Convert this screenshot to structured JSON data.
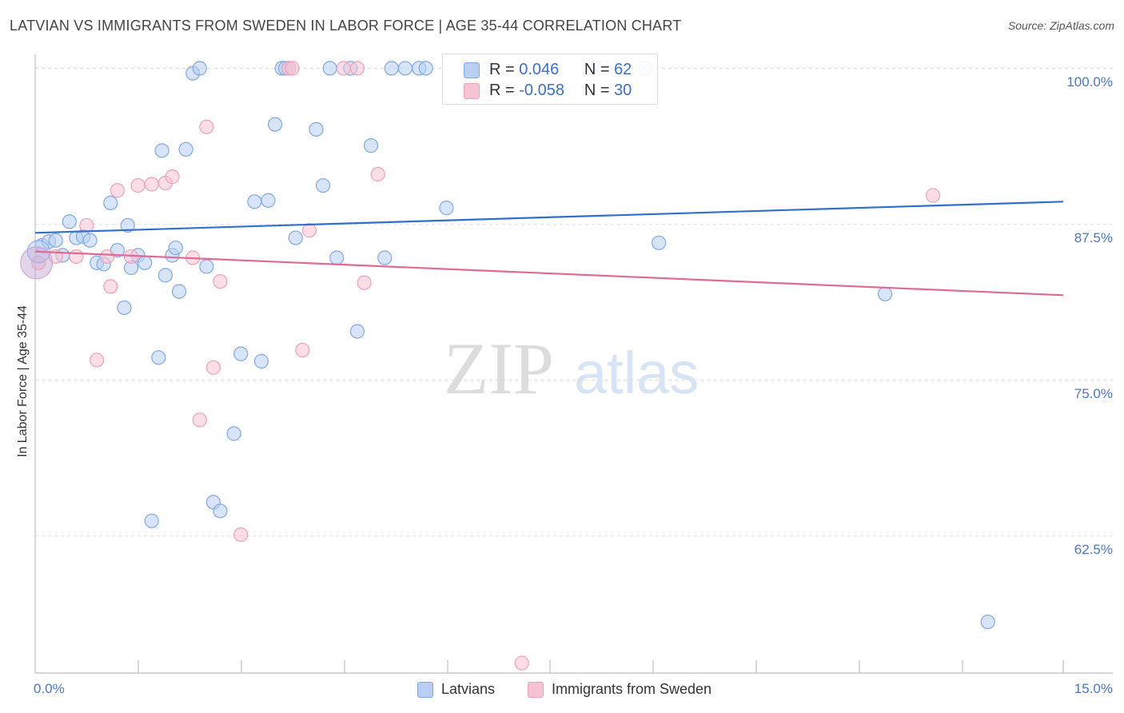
{
  "header": {
    "title": "LATVIAN VS IMMIGRANTS FROM SWEDEN IN LABOR FORCE | AGE 35-44 CORRELATION CHART",
    "source": "Source: ZipAtlas.com"
  },
  "watermark": {
    "zip": "ZIP",
    "atlas": "atlas"
  },
  "legend": {
    "rows": [
      {
        "r_label": "R = ",
        "r_value": "0.046",
        "n_label": "N = ",
        "n_value": "62"
      },
      {
        "r_label": "R = ",
        "r_value": "-0.058",
        "n_label": "N = ",
        "n_value": "30"
      }
    ]
  },
  "chart_data": {
    "type": "scatter",
    "title": "LATVIAN VS IMMIGRANTS FROM SWEDEN IN LABOR FORCE | AGE 35-44 CORRELATION CHART",
    "xlabel": "",
    "ylabel": "In Labor Force | Age 35-44",
    "xlim": [
      0,
      15
    ],
    "ylim": [
      51.5,
      101.5
    ],
    "x_tick_labels": [
      "0.0%",
      "15.0%"
    ],
    "y_ticks": [
      62.5,
      75.0,
      87.5,
      100.0
    ],
    "y_tick_labels": [
      "62.5%",
      "75.0%",
      "87.5%",
      "100.0%"
    ],
    "grid": true,
    "legend_position": "bottom-center",
    "series": [
      {
        "name": "Latvians",
        "color": "#7fa8e8",
        "fill": "#b8cff3",
        "line_color": "#2f6fce",
        "trend": {
          "x0": 0.0,
          "y0": 86.8,
          "x1": 15.0,
          "y1": 89.3
        },
        "points": [
          [
            0.1,
            85.8
          ],
          [
            0.2,
            86.1
          ],
          [
            0.3,
            86.2
          ],
          [
            0.4,
            85.0
          ],
          [
            0.5,
            87.7
          ],
          [
            0.6,
            86.4
          ],
          [
            0.7,
            86.5
          ],
          [
            0.8,
            86.2
          ],
          [
            0.9,
            84.4
          ],
          [
            1.0,
            84.3
          ],
          [
            1.1,
            89.2
          ],
          [
            1.2,
            85.4
          ],
          [
            1.3,
            80.8
          ],
          [
            1.35,
            87.4
          ],
          [
            1.4,
            84.0
          ],
          [
            1.5,
            85.0
          ],
          [
            1.6,
            84.4
          ],
          [
            1.7,
            63.7
          ],
          [
            1.8,
            76.8
          ],
          [
            1.85,
            93.4
          ],
          [
            1.9,
            83.4
          ],
          [
            2.0,
            85.0
          ],
          [
            2.05,
            85.6
          ],
          [
            2.1,
            82.1
          ],
          [
            2.2,
            93.5
          ],
          [
            2.3,
            99.6
          ],
          [
            2.4,
            100.0
          ],
          [
            2.5,
            84.1
          ],
          [
            2.6,
            65.2
          ],
          [
            2.7,
            64.5
          ],
          [
            2.9,
            70.7
          ],
          [
            3.0,
            77.1
          ],
          [
            3.2,
            89.3
          ],
          [
            3.3,
            76.5
          ],
          [
            3.4,
            89.4
          ],
          [
            3.5,
            95.5
          ],
          [
            3.6,
            100.0
          ],
          [
            3.65,
            100.0
          ],
          [
            3.7,
            100.0
          ],
          [
            3.8,
            86.4
          ],
          [
            4.1,
            95.1
          ],
          [
            4.2,
            90.6
          ],
          [
            4.3,
            100.0
          ],
          [
            4.4,
            84.8
          ],
          [
            4.6,
            100.0
          ],
          [
            4.7,
            78.9
          ],
          [
            4.9,
            93.8
          ],
          [
            5.1,
            84.8
          ],
          [
            5.2,
            100.0
          ],
          [
            5.4,
            100.0
          ],
          [
            5.6,
            100.0
          ],
          [
            5.7,
            100.0
          ],
          [
            6.0,
            88.8
          ],
          [
            6.3,
            100.0
          ],
          [
            6.6,
            100.0
          ],
          [
            8.2,
            100.0
          ],
          [
            8.3,
            100.0
          ],
          [
            8.5,
            100.0
          ],
          [
            9.1,
            86.0
          ],
          [
            12.4,
            81.9
          ],
          [
            13.9,
            55.6
          ],
          [
            8.9,
            100.0
          ]
        ]
      },
      {
        "name": "Immigrants from Sweden",
        "color": "#f0a0b8",
        "fill": "#f7c3d2",
        "line_color": "#e06a93",
        "trend": {
          "x0": 0.0,
          "y0": 85.3,
          "x1": 15.0,
          "y1": 81.8
        },
        "points": [
          [
            0.05,
            84.4
          ],
          [
            0.3,
            84.9
          ],
          [
            0.6,
            84.9
          ],
          [
            0.75,
            87.4
          ],
          [
            0.9,
            76.6
          ],
          [
            1.05,
            84.9
          ],
          [
            1.1,
            82.5
          ],
          [
            1.2,
            90.2
          ],
          [
            1.4,
            84.9
          ],
          [
            1.5,
            90.6
          ],
          [
            1.7,
            90.7
          ],
          [
            1.9,
            90.8
          ],
          [
            2.0,
            91.3
          ],
          [
            2.3,
            84.8
          ],
          [
            2.4,
            71.8
          ],
          [
            2.5,
            95.3
          ],
          [
            2.6,
            76.0
          ],
          [
            2.7,
            82.9
          ],
          [
            3.0,
            62.6
          ],
          [
            3.7,
            100.0
          ],
          [
            3.75,
            100.0
          ],
          [
            3.9,
            77.4
          ],
          [
            4.0,
            87.0
          ],
          [
            4.5,
            100.0
          ],
          [
            4.7,
            100.0
          ],
          [
            4.8,
            82.8
          ],
          [
            5.0,
            91.5
          ],
          [
            6.6,
            97.9
          ],
          [
            7.1,
            52.3
          ],
          [
            13.1,
            89.8
          ]
        ]
      }
    ]
  }
}
